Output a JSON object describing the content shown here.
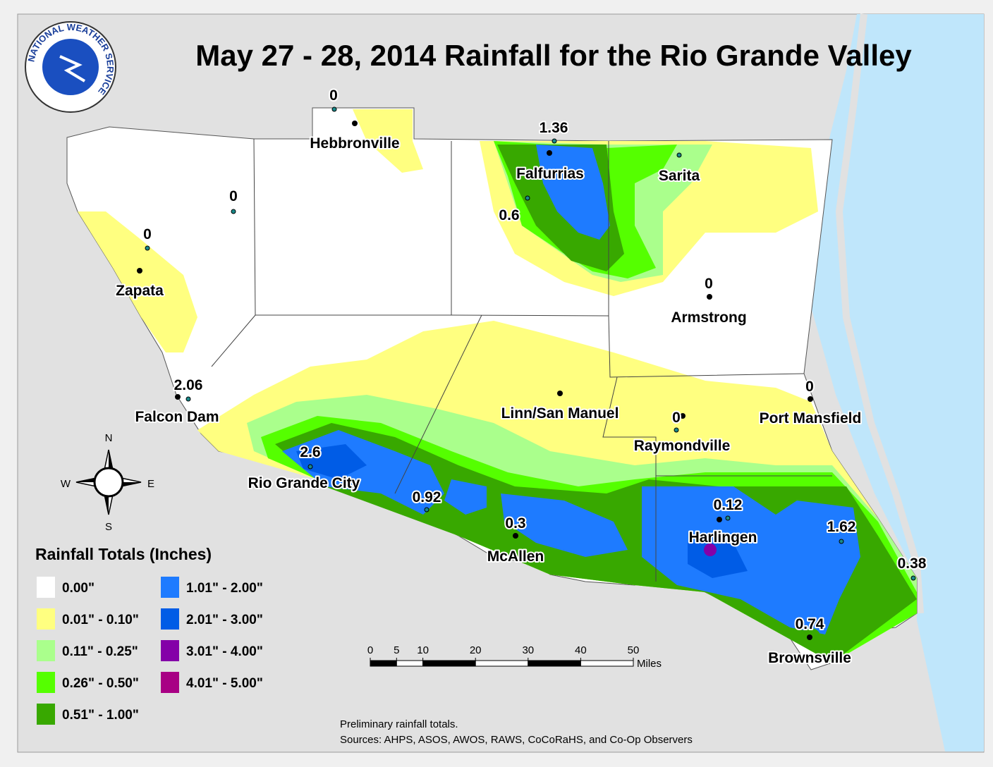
{
  "logo_text": "NATIONAL WEATHER SERVICE",
  "title": "May 27 - 28, 2014 Rainfall for the Rio Grande Valley",
  "places": [
    "Hebbronville",
    "Falfurrias",
    "Sarita",
    "Zapata",
    "Armstrong",
    "Falcon Dam",
    "Linn/San Manuel",
    "Port Mansfield",
    "Raymondville",
    "Rio Grande City",
    "Harlingen",
    "McAllen",
    "Brownsville"
  ],
  "totals": [
    0,
    1.36,
    0,
    0,
    0.6,
    0,
    2.06,
    0,
    0,
    2.6,
    0.92,
    0.3,
    0.12,
    1.62,
    0.38,
    0.74
  ],
  "legend": {
    "title": "Rainfall Totals (Inches)",
    "items": [
      {
        "label": "0.00\"",
        "color": "#ffffff"
      },
      {
        "label": "0.01\" - 0.10\"",
        "color": "#ffff80"
      },
      {
        "label": "0.11\" - 0.25\"",
        "color": "#aaff8c"
      },
      {
        "label": "0.26\" - 0.50\"",
        "color": "#55ff00"
      },
      {
        "label": "0.51\" - 1.00\"",
        "color": "#38a800"
      },
      {
        "label": "1.01\" - 2.00\"",
        "color": "#1e7bff"
      },
      {
        "label": "2.01\" - 3.00\"",
        "color": "#005ce6"
      },
      {
        "label": "3.01\" - 4.00\"",
        "color": "#8400a8"
      },
      {
        "label": "4.01\" - 5.00\"",
        "color": "#a80084"
      }
    ]
  },
  "compass": {
    "n": "N",
    "e": "E",
    "s": "S",
    "w": "W"
  },
  "scale": {
    "ticks": [
      0,
      5,
      10,
      20,
      30,
      40,
      50
    ],
    "unit": "Miles"
  },
  "notes": [
    "Preliminary rainfall totals.",
    "Sources: AHPS, ASOS, AWOS, RAWS, CoCoRaHS, and Co-Op Observers"
  ]
}
